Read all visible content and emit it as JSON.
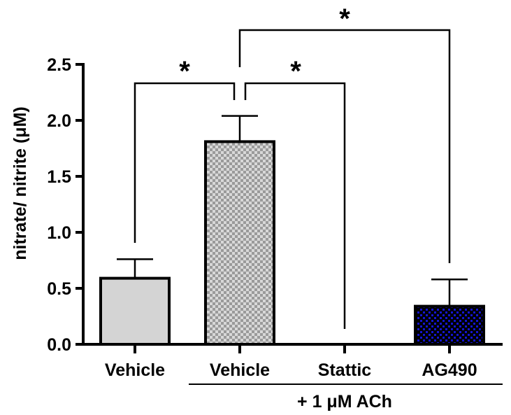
{
  "chart_data": {
    "type": "bar",
    "title": "",
    "xlabel": "",
    "ylabel": "nitrate/ nitrite  (μM)",
    "ylim": [
      0,
      2.5
    ],
    "yticks": [
      "0.0",
      "0.5",
      "1.0",
      "1.5",
      "2.0",
      "2.5"
    ],
    "categories": [
      "Vehicle",
      "Vehicle",
      "Stattic",
      "AG490"
    ],
    "values": [
      0.59,
      1.81,
      0.0,
      0.34
    ],
    "error_upper": [
      0.76,
      2.04,
      0.0,
      0.58
    ],
    "sem": [
      0.17,
      0.23,
      0.0,
      0.24
    ],
    "bar_fills": [
      {
        "pattern": "solid",
        "color": "#d4d4d4"
      },
      {
        "pattern": "checker",
        "colors": [
          "#9a9a9a",
          "#d8d8d8"
        ]
      },
      {
        "pattern": "none",
        "color": "#ffffff"
      },
      {
        "pattern": "checker",
        "colors": [
          "#000000",
          "#1010c8"
        ]
      }
    ],
    "group_annotation": {
      "label": "+ 1 μM  ACh",
      "spans_categories": [
        1,
        2,
        3
      ]
    },
    "significance": [
      {
        "from": 0,
        "to": 1,
        "label": "*"
      },
      {
        "from": 1,
        "to": 2,
        "label": "*"
      },
      {
        "from": 1,
        "to": 3,
        "label": "*"
      }
    ],
    "grid": false,
    "legend": null
  }
}
